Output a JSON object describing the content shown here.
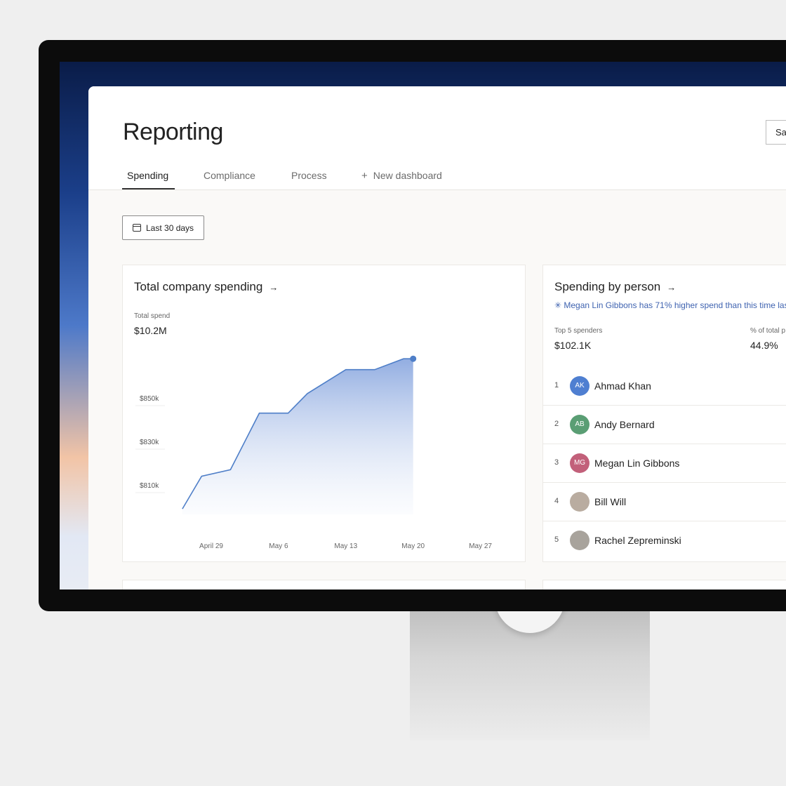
{
  "header": {
    "title": "Reporting",
    "save_label": "Sa"
  },
  "tabs": [
    {
      "label": "Spending",
      "active": true
    },
    {
      "label": "Compliance"
    },
    {
      "label": "Process"
    },
    {
      "label": "New dashboard",
      "icon": "plus-icon"
    }
  ],
  "filter": {
    "date_range": "Last 30 days",
    "icon": "calendar-icon"
  },
  "total_card": {
    "title": "Total company spending",
    "metric_label": "Total spend",
    "metric_value": "$10.2M"
  },
  "person_card": {
    "title": "Spending by person",
    "insight": "Megan Lin Gibbons has 71% higher spend than this time las",
    "insight_icon": "sparkle-icon",
    "top_label": "Top 5 spenders",
    "top_value": "$102.1K",
    "pct_label": "% of total p",
    "pct_value": "44.9%",
    "people": [
      {
        "rank": "1",
        "initials": "AK",
        "name": "Ahmad Khan",
        "color": "#4f7fd1"
      },
      {
        "rank": "2",
        "initials": "AB",
        "name": "Andy Bernard",
        "color": "#5a9e74"
      },
      {
        "rank": "3",
        "initials": "MG",
        "name": "Megan Lin Gibbons",
        "color": "#c2607a"
      },
      {
        "rank": "4",
        "initials": "",
        "name": "Bill Will",
        "color": "#b9aca0"
      },
      {
        "rank": "5",
        "initials": "",
        "name": "Rachel Zepreminski",
        "color": "#a8a39c"
      }
    ]
  },
  "colors": {
    "accent": "#4f7fc8",
    "insight": "#3f63b0"
  },
  "chart_data": {
    "type": "area",
    "x": [
      "Apr 26",
      "Apr 28",
      "May 1",
      "May 4",
      "May 7",
      "May 9",
      "May 13",
      "May 16",
      "May 19",
      "May 20"
    ],
    "values": [
      799,
      814,
      817,
      843,
      843,
      852,
      863,
      863,
      868,
      868
    ],
    "y_unit": "$k",
    "y_ticks": [
      "$810k",
      "$830k",
      "$850k"
    ],
    "y_tick_values": [
      810,
      830,
      850
    ],
    "x_ticks": [
      "April 29",
      "May 6",
      "May 13",
      "May 20",
      "May 27"
    ],
    "grid": false,
    "last_point_marker": true
  }
}
